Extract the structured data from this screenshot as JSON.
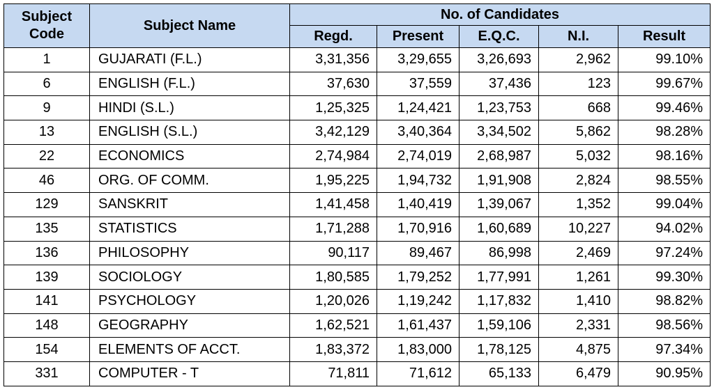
{
  "headers": {
    "subject_code": "Subject Code",
    "subject_code_line1": "Subject",
    "subject_code_line2": "Code",
    "subject_name": "Subject Name",
    "group": "No. of Candidates",
    "regd": "Regd.",
    "present": "Present",
    "eqc": "E.Q.C.",
    "ni": "N.I.",
    "result": "Result"
  },
  "rows": [
    {
      "code": "1",
      "name": "GUJARATI (F.L.)",
      "regd": "3,31,356",
      "present": "3,29,655",
      "eqc": "3,26,693",
      "ni": "2,962",
      "result": "99.10%"
    },
    {
      "code": "6",
      "name": "ENGLISH (F.L.)",
      "regd": "37,630",
      "present": "37,559",
      "eqc": "37,436",
      "ni": "123",
      "result": "99.67%"
    },
    {
      "code": "9",
      "name": "HINDI (S.L.)",
      "regd": "1,25,325",
      "present": "1,24,421",
      "eqc": "1,23,753",
      "ni": "668",
      "result": "99.46%"
    },
    {
      "code": "13",
      "name": "ENGLISH (S.L.)",
      "regd": "3,42,129",
      "present": "3,40,364",
      "eqc": "3,34,502",
      "ni": "5,862",
      "result": "98.28%"
    },
    {
      "code": "22",
      "name": "ECONOMICS",
      "regd": "2,74,984",
      "present": "2,74,019",
      "eqc": "2,68,987",
      "ni": "5,032",
      "result": "98.16%"
    },
    {
      "code": "46",
      "name": "ORG. OF COMM.",
      "regd": "1,95,225",
      "present": "1,94,732",
      "eqc": "1,91,908",
      "ni": "2,824",
      "result": "98.55%"
    },
    {
      "code": "129",
      "name": "SANSKRIT",
      "regd": "1,41,458",
      "present": "1,40,419",
      "eqc": "1,39,067",
      "ni": "1,352",
      "result": "99.04%"
    },
    {
      "code": "135",
      "name": "STATISTICS",
      "regd": "1,71,288",
      "present": "1,70,916",
      "eqc": "1,60,689",
      "ni": "10,227",
      "result": "94.02%"
    },
    {
      "code": "136",
      "name": "PHILOSOPHY",
      "regd": "90,117",
      "present": "89,467",
      "eqc": "86,998",
      "ni": "2,469",
      "result": "97.24%"
    },
    {
      "code": "139",
      "name": "SOCIOLOGY",
      "regd": "1,80,585",
      "present": "1,79,252",
      "eqc": "1,77,991",
      "ni": "1,261",
      "result": "99.30%"
    },
    {
      "code": "141",
      "name": "PSYCHOLOGY",
      "regd": "1,20,026",
      "present": "1,19,242",
      "eqc": "1,17,832",
      "ni": "1,410",
      "result": "98.82%"
    },
    {
      "code": "148",
      "name": "GEOGRAPHY",
      "regd": "1,62,521",
      "present": "1,61,437",
      "eqc": "1,59,106",
      "ni": "2,331",
      "result": "98.56%"
    },
    {
      "code": "154",
      "name": "ELEMENTS OF ACCT.",
      "regd": "1,83,372",
      "present": "1,83,000",
      "eqc": "1,78,125",
      "ni": "4,875",
      "result": "97.34%"
    },
    {
      "code": "331",
      "name": "COMPUTER - T",
      "regd": "71,811",
      "present": "71,612",
      "eqc": "65,133",
      "ni": "6,479",
      "result": "90.95%"
    }
  ],
  "colors": {
    "header_bg": "#c6d9f1",
    "border": "#000000",
    "text": "#000000"
  }
}
